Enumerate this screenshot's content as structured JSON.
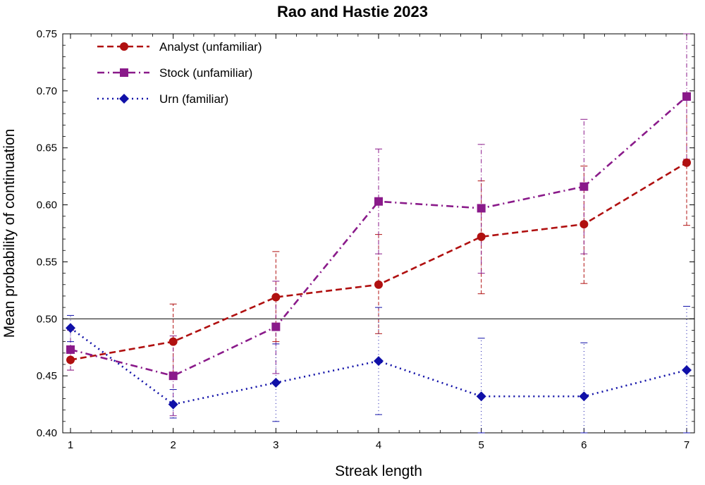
{
  "chart_data": {
    "type": "line",
    "title": "Rao and Hastie 2023",
    "xlabel": "Streak length",
    "ylabel": "Mean probability of continuation",
    "x": [
      1,
      2,
      3,
      4,
      5,
      6,
      7
    ],
    "xlim": [
      1,
      7
    ],
    "ylim": [
      0.4,
      0.75
    ],
    "yticks": [
      0.4,
      0.45,
      0.5,
      0.55,
      0.6,
      0.65,
      0.7,
      0.75
    ],
    "reference_line": 0.5,
    "grid": false,
    "legend_position": "top-left",
    "series": [
      {
        "name": "Analyst (unfamiliar)",
        "color": "#b01010",
        "dash": "dashed",
        "marker": "circle",
        "values": [
          0.464,
          0.48,
          0.519,
          0.53,
          0.572,
          0.583,
          0.637
        ],
        "error_low": [
          0.455,
          0.447,
          0.48,
          0.487,
          0.522,
          0.531,
          0.582
        ],
        "error_high": [
          0.474,
          0.513,
          0.559,
          0.574,
          0.621,
          0.634,
          0.692
        ]
      },
      {
        "name": "Stock (unfamiliar)",
        "color": "#8a1a8a",
        "dash": "dash-dot",
        "marker": "square",
        "values": [
          0.473,
          0.45,
          0.493,
          0.603,
          0.597,
          0.616,
          0.695
        ],
        "error_low": [
          0.455,
          0.415,
          0.452,
          0.557,
          0.54,
          0.557,
          0.64
        ],
        "error_high": [
          0.49,
          0.485,
          0.533,
          0.649,
          0.653,
          0.675,
          0.75
        ]
      },
      {
        "name": "Urn (familiar)",
        "color": "#1010a8",
        "dash": "dotted",
        "marker": "diamond",
        "values": [
          0.492,
          0.425,
          0.444,
          0.463,
          0.432,
          0.432,
          0.455
        ],
        "error_low": [
          0.48,
          0.413,
          0.41,
          0.416,
          0.4,
          0.4,
          0.4
        ],
        "error_high": [
          0.503,
          0.438,
          0.478,
          0.51,
          0.483,
          0.479,
          0.511
        ]
      }
    ]
  }
}
